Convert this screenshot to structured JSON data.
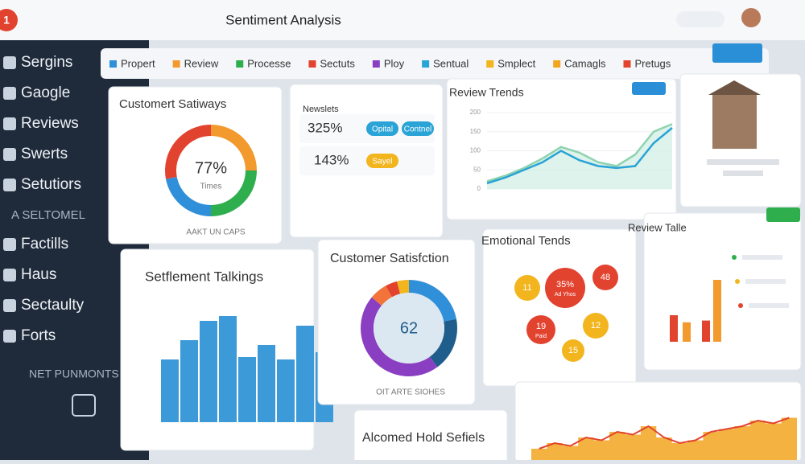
{
  "header": {
    "badge": "1",
    "title": "Sentiment Analysis"
  },
  "sidebar": {
    "group1": [
      "Sergins",
      "Gaogle",
      "Reviews",
      "Swerts",
      "Setutiors"
    ],
    "section1": "A SELTOMEL",
    "group2": [
      "Factills",
      "Haus",
      "Sectaulty",
      "Forts"
    ],
    "section2": "NET PUNMONTS"
  },
  "legend": [
    {
      "label": "Propert",
      "color": "#2f8fd8"
    },
    {
      "label": "Review",
      "color": "#f29a2e"
    },
    {
      "label": "Processe",
      "color": "#2fae4e"
    },
    {
      "label": "Sectuts",
      "color": "#e2432f"
    },
    {
      "label": "Ploy",
      "color": "#8a3fc2"
    },
    {
      "label": "Sentual",
      "color": "#2aa3d6"
    },
    {
      "label": "Smplect",
      "color": "#f2b51e"
    },
    {
      "label": "Camagls",
      "color": "#f2a51e"
    },
    {
      "label": "Pretugs",
      "color": "#e2432f"
    }
  ],
  "cards": {
    "satiways": {
      "title": "Customert Satiways",
      "center": "77%",
      "sub": "Times",
      "caption": "AAKT UN CAPS",
      "segments": [
        {
          "value": 25,
          "color": "#f29a2e"
        },
        {
          "value": 25,
          "color": "#2fae4e"
        },
        {
          "value": 22,
          "color": "#2f8fd8"
        },
        {
          "value": 28,
          "color": "#e2432f"
        }
      ]
    },
    "newslets": {
      "title": "Newslets",
      "rows": [
        {
          "value": "325%",
          "pills": [
            {
              "label": "Opital",
              "color": "#2aa3d6"
            },
            {
              "label": "Contnel",
              "color": "#2aa3d6"
            }
          ]
        },
        {
          "value": "143%",
          "pills": [
            {
              "label": "Sayel",
              "color": "#f2b51e"
            }
          ]
        }
      ]
    },
    "review_trends": {
      "title": "Review Trends",
      "ylim": [
        0,
        200
      ],
      "yticks": [
        0,
        50,
        100,
        150,
        200
      ],
      "series": [
        {
          "color": "#8fd3b0",
          "values": [
            20,
            35,
            55,
            80,
            110,
            95,
            70,
            60,
            90,
            150,
            170
          ]
        },
        {
          "color": "#2aa3d6",
          "values": [
            15,
            30,
            50,
            70,
            100,
            75,
            60,
            55,
            60,
            120,
            160
          ]
        }
      ]
    },
    "talkings": {
      "title": "Setflement Talkings",
      "color": "#3d9ad8",
      "ylim": [
        0,
        100
      ],
      "values": [
        52,
        68,
        84,
        88,
        54,
        64,
        52,
        80,
        58
      ]
    },
    "satisfaction": {
      "title": "Customer Satisfction",
      "center": "62",
      "caption": "OIT ARTE SIOHES",
      "segments": [
        {
          "value": 22,
          "color": "#2f8fd8"
        },
        {
          "value": 18,
          "color": "#1f5d8c"
        },
        {
          "value": 46,
          "color": "#8a3fc2"
        },
        {
          "value": 6,
          "color": "#f2743a"
        },
        {
          "value": 4,
          "color": "#e2432f"
        },
        {
          "value": 4,
          "color": "#f2b51e"
        }
      ]
    },
    "emotional": {
      "title": "Emotional Tends",
      "bubbles": [
        {
          "label": "11",
          "color": "#f2b51e"
        },
        {
          "label": "35%",
          "sub": "Ad Yhos",
          "color": "#e2432f"
        },
        {
          "label": "48",
          "color": "#e2432f"
        },
        {
          "label": "19",
          "sub": "Paid",
          "color": "#e2432f"
        },
        {
          "label": "12",
          "color": "#f2b51e"
        },
        {
          "label": "15",
          "color": "#f2b51e"
        }
      ]
    },
    "review_talle": {
      "title": "Review Talle",
      "ylim": [
        0,
        100
      ],
      "bars": [
        {
          "value": 30,
          "color": "#e2432f"
        },
        {
          "value": 22,
          "color": "#f29a2e"
        },
        {
          "value": 24,
          "color": "#e2432f"
        },
        {
          "value": 70,
          "color": "#f29a2e"
        }
      ]
    },
    "alcomed": {
      "title": "Alcomed Hold Sefiels"
    },
    "steps": {
      "ylim": [
        0,
        100
      ],
      "color": "#f2a51e",
      "line": "#e2432f",
      "values": [
        20,
        30,
        25,
        40,
        35,
        50,
        45,
        60,
        40,
        30,
        35,
        50,
        55,
        60,
        70,
        65,
        75
      ]
    }
  }
}
